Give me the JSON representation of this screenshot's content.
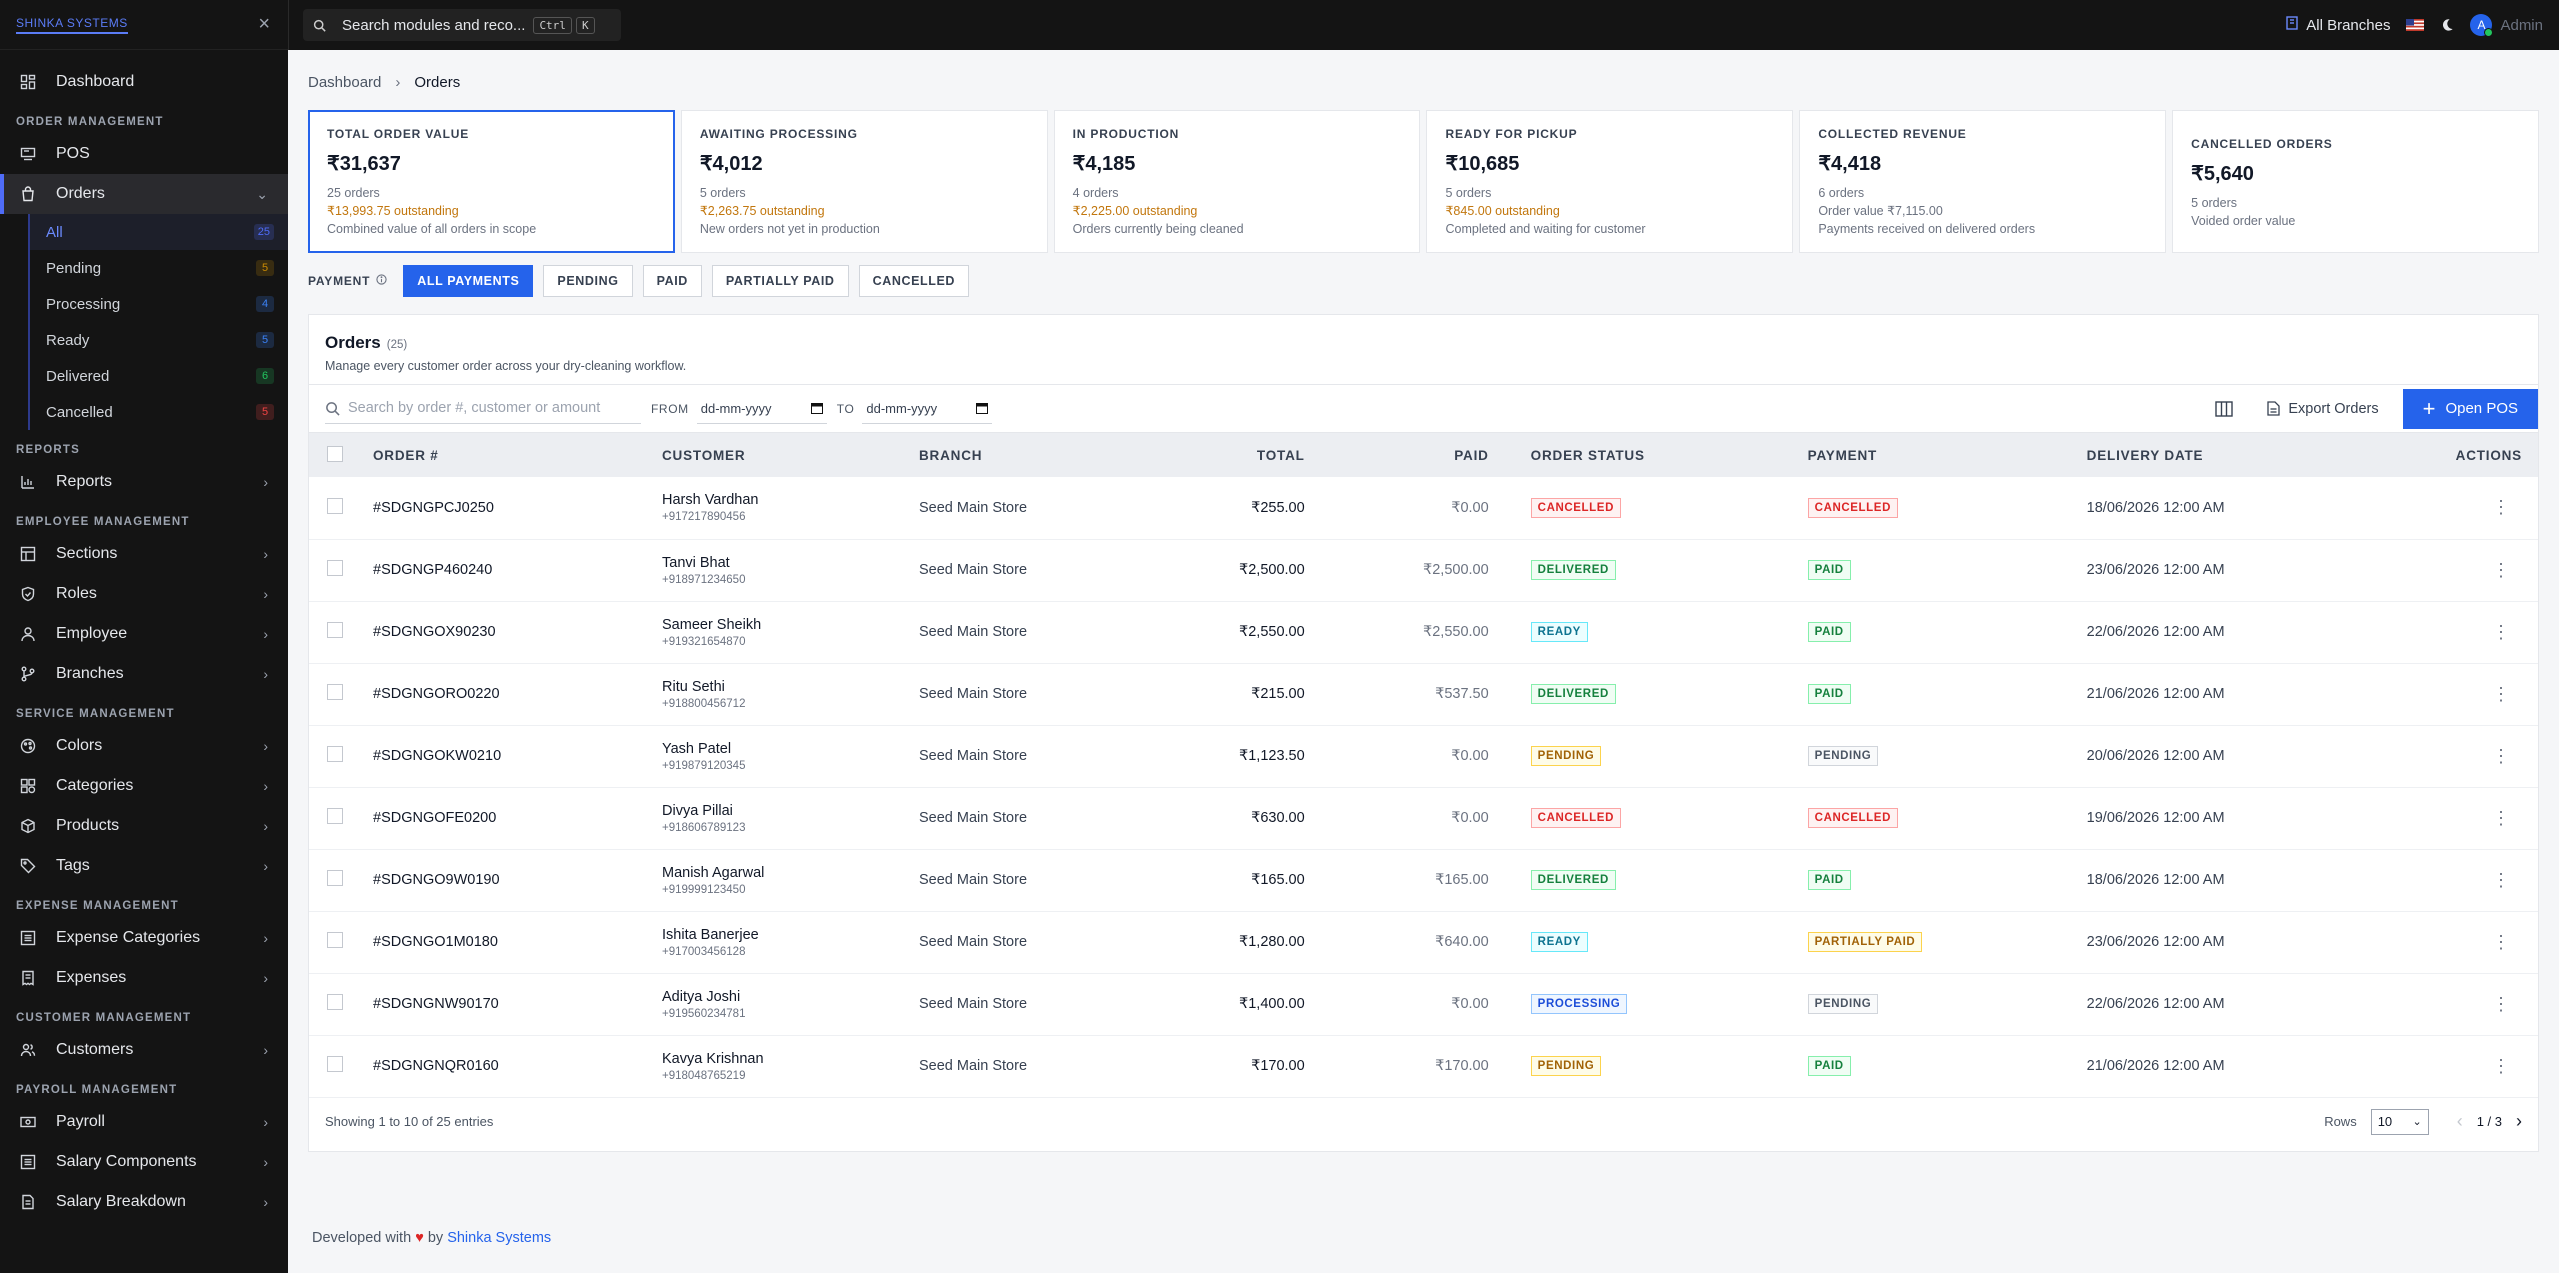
{
  "sidebar": {
    "logo": "SHINKA SYSTEMS",
    "dashboard": "Dashboard",
    "sections": {
      "order": "ORDER MANAGEMENT",
      "reports": "REPORTS",
      "employee": "EMPLOYEE MANAGEMENT",
      "service": "SERVICE MANAGEMENT",
      "expense": "EXPENSE MANAGEMENT",
      "customer": "CUSTOMER MANAGEMENT",
      "payroll": "PAYROLL MANAGEMENT"
    },
    "pos": "POS",
    "orders": "Orders",
    "order_subs": [
      {
        "label": "All",
        "count": "25",
        "color": "#4f6cf7"
      },
      {
        "label": "Pending",
        "count": "5",
        "color": "#ca8a04"
      },
      {
        "label": "Processing",
        "count": "4",
        "color": "#3b82f6"
      },
      {
        "label": "Ready",
        "count": "5",
        "color": "#3b82f6"
      },
      {
        "label": "Delivered",
        "count": "6",
        "color": "#22c55e"
      },
      {
        "label": "Cancelled",
        "count": "5",
        "color": "#ef4444"
      }
    ],
    "reports": "Reports",
    "sections_item": "Sections",
    "roles": "Roles",
    "employee": "Employee",
    "branches": "Branches",
    "colors": "Colors",
    "categories": "Categories",
    "products": "Products",
    "tags": "Tags",
    "expense_categories": "Expense Categories",
    "expenses": "Expenses",
    "customers": "Customers",
    "payroll": "Payroll",
    "salary_components": "Salary Components",
    "salary_breakdown": "Salary Breakdown"
  },
  "topbar": {
    "search_placeholder": "Search modules and reco...",
    "kbd1": "Ctrl",
    "kbd2": "K",
    "branch": "All Branches",
    "avatar_letter": "A",
    "user": "Admin"
  },
  "breadcrumb": {
    "root": "Dashboard",
    "current": "Orders"
  },
  "cards": [
    {
      "title": "TOTAL ORDER VALUE",
      "value": "₹31,637",
      "sub": "25 orders",
      "outstanding": "₹13,993.75 outstanding",
      "desc": "Combined value of all orders in scope"
    },
    {
      "title": "AWAITING PROCESSING",
      "value": "₹4,012",
      "sub": "5 orders",
      "outstanding": "₹2,263.75 outstanding",
      "desc": "New orders not yet in production"
    },
    {
      "title": "IN PRODUCTION",
      "value": "₹4,185",
      "sub": "4 orders",
      "outstanding": "₹2,225.00 outstanding",
      "desc": "Orders currently being cleaned"
    },
    {
      "title": "READY FOR PICKUP",
      "value": "₹10,685",
      "sub": "5 orders",
      "outstanding": "₹845.00 outstanding",
      "desc": "Completed and waiting for customer"
    },
    {
      "title": "COLLECTED REVENUE",
      "value": "₹4,418",
      "sub": "6 orders",
      "outstanding": "Order value ₹7,115.00",
      "desc": "Payments received on delivered orders"
    },
    {
      "title": "CANCELLED ORDERS",
      "value": "₹5,640",
      "sub": "5 orders",
      "outstanding": "",
      "desc": "Voided order value"
    }
  ],
  "filters": {
    "label": "PAYMENT",
    "buttons": [
      "ALL PAYMENTS",
      "PENDING",
      "PAID",
      "PARTIALLY PAID",
      "CANCELLED"
    ]
  },
  "panel": {
    "title": "Orders",
    "count": "(25)",
    "desc": "Manage every customer order across your dry-cleaning workflow.",
    "search_placeholder": "Search by order #, customer or amount",
    "from_label": "FROM",
    "to_label": "TO",
    "date_placeholder": "dd-mm-yyyy",
    "export": "Export Orders",
    "open_pos": "Open POS"
  },
  "table": {
    "headers": [
      "ORDER #",
      "CUSTOMER",
      "BRANCH",
      "TOTAL",
      "PAID",
      "ORDER STATUS",
      "PAYMENT",
      "DELIVERY DATE",
      "ACTIONS"
    ],
    "rows": [
      {
        "order": "#SDGNGPCJ0250",
        "name": "Harsh Vardhan",
        "phone": "+917217890456",
        "branch": "Seed Main Store",
        "total": "₹255.00",
        "paid": "₹0.00",
        "status": "CANCELLED",
        "payment": "CANCELLED",
        "date": "18/06/2026 12:00 AM"
      },
      {
        "order": "#SDGNGP460240",
        "name": "Tanvi Bhat",
        "phone": "+918971234650",
        "branch": "Seed Main Store",
        "total": "₹2,500.00",
        "paid": "₹2,500.00",
        "status": "DELIVERED",
        "payment": "PAID",
        "date": "23/06/2026 12:00 AM"
      },
      {
        "order": "#SDGNGOX90230",
        "name": "Sameer Sheikh",
        "phone": "+919321654870",
        "branch": "Seed Main Store",
        "total": "₹2,550.00",
        "paid": "₹2,550.00",
        "status": "READY",
        "payment": "PAID",
        "date": "22/06/2026 12:00 AM"
      },
      {
        "order": "#SDGNGORO0220",
        "name": "Ritu Sethi",
        "phone": "+918800456712",
        "branch": "Seed Main Store",
        "total": "₹215.00",
        "paid": "₹537.50",
        "status": "DELIVERED",
        "payment": "PAID",
        "date": "21/06/2026 12:00 AM"
      },
      {
        "order": "#SDGNGOKW0210",
        "name": "Yash Patel",
        "phone": "+919879120345",
        "branch": "Seed Main Store",
        "total": "₹1,123.50",
        "paid": "₹0.00",
        "status": "PENDING",
        "payment": "PENDING",
        "date": "20/06/2026 12:00 AM"
      },
      {
        "order": "#SDGNGOFE0200",
        "name": "Divya Pillai",
        "phone": "+918606789123",
        "branch": "Seed Main Store",
        "total": "₹630.00",
        "paid": "₹0.00",
        "status": "CANCELLED",
        "payment": "CANCELLED",
        "date": "19/06/2026 12:00 AM"
      },
      {
        "order": "#SDGNGO9W0190",
        "name": "Manish Agarwal",
        "phone": "+919999123450",
        "branch": "Seed Main Store",
        "total": "₹165.00",
        "paid": "₹165.00",
        "status": "DELIVERED",
        "payment": "PAID",
        "date": "18/06/2026 12:00 AM"
      },
      {
        "order": "#SDGNGO1M0180",
        "name": "Ishita Banerjee",
        "phone": "+917003456128",
        "branch": "Seed Main Store",
        "total": "₹1,280.00",
        "paid": "₹640.00",
        "status": "READY",
        "payment": "PARTIALLY PAID",
        "date": "23/06/2026 12:00 AM"
      },
      {
        "order": "#SDGNGNW90170",
        "name": "Aditya Joshi",
        "phone": "+919560234781",
        "branch": "Seed Main Store",
        "total": "₹1,400.00",
        "paid": "₹0.00",
        "status": "PROCESSING",
        "payment": "PENDING",
        "date": "22/06/2026 12:00 AM"
      },
      {
        "order": "#SDGNGNQR0160",
        "name": "Kavya Krishnan",
        "phone": "+918048765219",
        "branch": "Seed Main Store",
        "total": "₹170.00",
        "paid": "₹170.00",
        "status": "PENDING",
        "payment": "PAID",
        "date": "21/06/2026 12:00 AM"
      }
    ]
  },
  "pagination": {
    "showing": "Showing 1 to 10 of 25 entries",
    "rows_label": "Rows",
    "rows_value": "10",
    "page": "1 / 3"
  },
  "footer": {
    "prefix": "Developed with",
    "by": "by",
    "company": "Shinka Systems"
  }
}
